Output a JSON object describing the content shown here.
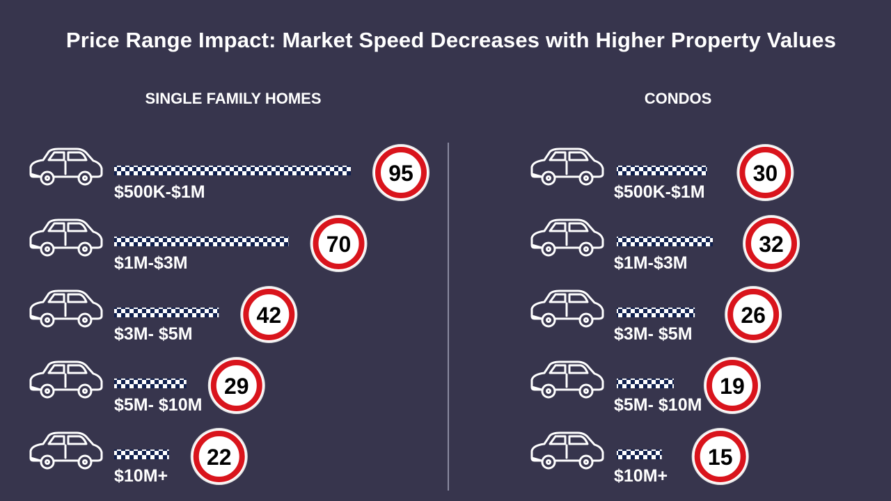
{
  "title": "Price Range Impact: Market Speed Decreases with Higher Property Values",
  "colors": {
    "background": "#37354d",
    "text": "#ffffff",
    "bar_dark": "#0f1f4d",
    "bar_light": "#ffffff",
    "sign_ring": "#d9141c",
    "sign_face": "#ffffff",
    "divider": "#8a8aa0"
  },
  "icons": {
    "vehicle": "car-outline-icon",
    "marker": "speed-limit-sign-icon",
    "bar_pattern": "checkered-flag-bar"
  },
  "chart_data": [
    {
      "type": "bar",
      "orientation": "horizontal",
      "title": "SINGLE FAMILY HOMES",
      "categories": [
        "$500K-$1M",
        "$1M-$3M",
        "$3M- $5M",
        "$5M- $10M",
        "$10M+"
      ],
      "values": [
        95,
        70,
        42,
        29,
        22
      ],
      "value_labels": [
        "95",
        "70",
        "42",
        "29",
        "22"
      ],
      "xlim": [
        0,
        95
      ],
      "grid": false
    },
    {
      "type": "bar",
      "orientation": "horizontal",
      "title": "CONDOS",
      "categories": [
        "$500K-$1M",
        "$1M-$3M",
        "$3M- $5M",
        "$5M- $10M",
        "$10M+"
      ],
      "values": [
        30,
        32,
        26,
        19,
        15
      ],
      "value_labels": [
        "30",
        "32",
        "26",
        "19",
        "15"
      ],
      "xlim": [
        0,
        32
      ],
      "grid": false
    }
  ]
}
